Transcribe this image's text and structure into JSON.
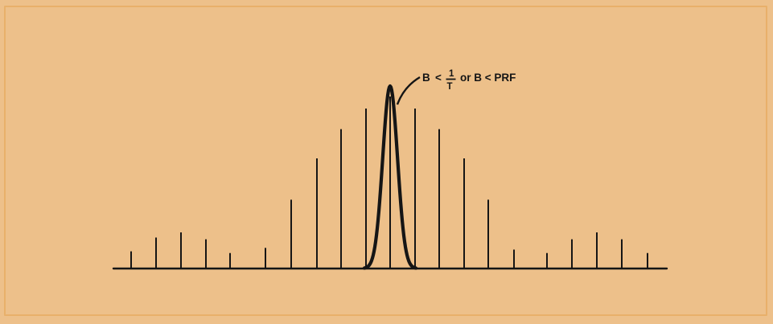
{
  "annotation": {
    "lhs": "B",
    "lt": "<",
    "numerator": "1",
    "denominator": "T",
    "tail": "or B < PRF"
  },
  "spectral_lines": [
    {
      "group": "left-sidelobe",
      "relative_height": 0.1
    },
    {
      "group": "left-sidelobe",
      "relative_height": 0.18
    },
    {
      "group": "left-sidelobe",
      "relative_height": 0.21
    },
    {
      "group": "left-sidelobe",
      "relative_height": 0.17
    },
    {
      "group": "left-sidelobe",
      "relative_height": 0.09
    },
    {
      "group": "main-lobe",
      "relative_height": 0.12
    },
    {
      "group": "main-lobe",
      "relative_height": 0.4
    },
    {
      "group": "main-lobe",
      "relative_height": 0.64
    },
    {
      "group": "main-lobe",
      "relative_height": 0.81
    },
    {
      "group": "main-lobe",
      "relative_height": 0.93
    },
    {
      "group": "main-lobe",
      "relative_height": 1.0
    },
    {
      "group": "main-lobe",
      "relative_height": 0.93
    },
    {
      "group": "main-lobe",
      "relative_height": 0.81
    },
    {
      "group": "main-lobe",
      "relative_height": 0.64
    },
    {
      "group": "main-lobe",
      "relative_height": 0.4
    },
    {
      "group": "right-sidelobe",
      "relative_height": 0.11
    },
    {
      "group": "right-sidelobe",
      "relative_height": 0.09
    },
    {
      "group": "right-sidelobe",
      "relative_height": 0.17
    },
    {
      "group": "right-sidelobe",
      "relative_height": 0.21
    },
    {
      "group": "right-sidelobe",
      "relative_height": 0.17
    },
    {
      "group": "right-sidelobe",
      "relative_height": 0.09
    }
  ],
  "filter": {
    "shape": "gaussian",
    "relative_height": 1.0,
    "relative_width": 0.035
  },
  "colors": {
    "background": "#edc08a",
    "ink": "#151515",
    "border": "#e8b06a"
  }
}
